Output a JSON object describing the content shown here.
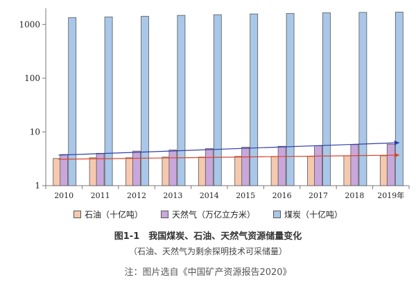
{
  "chart_data": {
    "type": "bar",
    "yscale": "log",
    "ylim": [
      1,
      2000
    ],
    "yticks": [
      "1",
      "10",
      "100",
      "1000"
    ],
    "categories": [
      "2010",
      "2011",
      "2012",
      "2013",
      "2014",
      "2015",
      "2016",
      "2017",
      "2018",
      "2019年"
    ],
    "series": [
      {
        "name": "石油（十亿吨）",
        "color": "#f5c9ae",
        "values": [
          3.2,
          3.3,
          3.3,
          3.4,
          3.4,
          3.5,
          3.5,
          3.5,
          3.6,
          3.6
        ]
      },
      {
        "name": "天然气（万亿立方米）",
        "color": "#c9a7db",
        "values": [
          3.8,
          4.0,
          4.4,
          4.6,
          4.9,
          5.2,
          5.4,
          5.5,
          5.8,
          5.9
        ]
      },
      {
        "name": "煤炭（十亿吨）",
        "color": "#a9c7e8",
        "values": [
          1340,
          1380,
          1420,
          1480,
          1520,
          1570,
          1600,
          1650,
          1680,
          1700
        ]
      }
    ],
    "trend_lines": [
      {
        "series": "天然气（万亿立方米）",
        "color": "#2f3fa8",
        "start": 3.7,
        "end": 6.3
      },
      {
        "series": "石油（十亿吨）",
        "color": "#d9442b",
        "start": 3.1,
        "end": 3.7
      }
    ],
    "grid": false,
    "legend": "bottom"
  },
  "caption": {
    "title": "图1-1　我国煤炭、石油、天然气资源储量变化",
    "subtitle": "（石油、天然气为剩余探明技术可采储量）",
    "note": "注：图片选自《中国矿产资源报告2020》"
  }
}
